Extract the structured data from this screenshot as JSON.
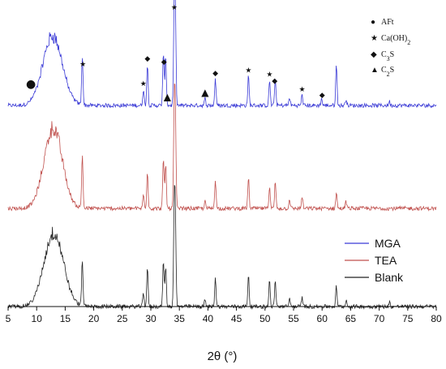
{
  "chart_data": {
    "type": "line",
    "xlabel": "2θ (°)",
    "xlim": [
      5,
      80
    ],
    "xticks": [
      5,
      10,
      15,
      20,
      25,
      30,
      35,
      40,
      45,
      50,
      55,
      60,
      65,
      70,
      75,
      80
    ],
    "series": [
      {
        "name": "MGA",
        "color": "#3b3bd6",
        "baseline": 0.0,
        "hump": {
          "center": 12.8,
          "width": 1.7,
          "height": 0.52
        },
        "peaks": [
          [
            18.0,
            0.37
          ],
          [
            28.7,
            0.12
          ],
          [
            29.4,
            0.31
          ],
          [
            32.2,
            0.38
          ],
          [
            32.6,
            0.37
          ],
          [
            34.1,
            0.72
          ],
          [
            34.3,
            0.62
          ],
          [
            39.5,
            0.05
          ],
          [
            41.3,
            0.2
          ],
          [
            47.1,
            0.22
          ],
          [
            50.8,
            0.19
          ],
          [
            51.8,
            0.2
          ],
          [
            54.3,
            0.06
          ],
          [
            56.5,
            0.08
          ],
          [
            59.9,
            0.05
          ],
          [
            62.5,
            0.3
          ],
          [
            64.2,
            0.05
          ],
          [
            71.8,
            0.03
          ]
        ]
      },
      {
        "name": "TEA",
        "color": "#c0504d",
        "baseline": 0.0,
        "hump": {
          "center": 12.9,
          "width": 1.6,
          "height": 0.6
        },
        "peaks": [
          [
            18.0,
            0.4
          ],
          [
            28.7,
            0.1
          ],
          [
            29.4,
            0.28
          ],
          [
            32.2,
            0.36
          ],
          [
            32.6,
            0.33
          ],
          [
            34.1,
            0.72
          ],
          [
            34.3,
            0.62
          ],
          [
            39.5,
            0.05
          ],
          [
            41.3,
            0.22
          ],
          [
            47.1,
            0.23
          ],
          [
            50.8,
            0.17
          ],
          [
            51.8,
            0.2
          ],
          [
            54.3,
            0.07
          ],
          [
            56.5,
            0.09
          ],
          [
            62.5,
            0.12
          ],
          [
            64.2,
            0.05
          ]
        ]
      },
      {
        "name": "Blank",
        "color": "#222222",
        "baseline": 0.0,
        "hump": {
          "center": 13.0,
          "width": 1.7,
          "height": 0.55
        },
        "peaks": [
          [
            18.0,
            0.34
          ],
          [
            28.7,
            0.1
          ],
          [
            29.4,
            0.29
          ],
          [
            32.2,
            0.33
          ],
          [
            32.6,
            0.3
          ],
          [
            34.1,
            0.72
          ],
          [
            34.3,
            0.6
          ],
          [
            39.5,
            0.05
          ],
          [
            41.3,
            0.22
          ],
          [
            47.1,
            0.24
          ],
          [
            50.8,
            0.2
          ],
          [
            51.8,
            0.19
          ],
          [
            54.3,
            0.06
          ],
          [
            56.5,
            0.07
          ],
          [
            62.5,
            0.15
          ],
          [
            64.2,
            0.05
          ],
          [
            71.8,
            0.03
          ]
        ]
      }
    ],
    "legend": {
      "placement": "right",
      "entries": [
        "MGA",
        "TEA",
        "Blank"
      ]
    },
    "phase_legend": [
      {
        "symbol": "circle",
        "glyph": "●",
        "label": "AFt"
      },
      {
        "symbol": "star",
        "glyph": "★",
        "label": "Ca(OH)2"
      },
      {
        "symbol": "diamond",
        "glyph": "◆",
        "label": "C3S"
      },
      {
        "symbol": "triangle",
        "glyph": "▲",
        "label": "C2S"
      }
    ],
    "annotations": [
      {
        "symbol": "circle",
        "x": 9.0
      },
      {
        "symbol": "star",
        "x": 18.1
      },
      {
        "symbol": "star",
        "x": 28.7
      },
      {
        "symbol": "diamond",
        "x": 29.4
      },
      {
        "symbol": "diamond",
        "x": 32.3
      },
      {
        "symbol": "triangle",
        "x": 32.9
      },
      {
        "symbol": "star",
        "x": 34.1
      },
      {
        "symbol": "triangle",
        "x": 39.5
      },
      {
        "symbol": "diamond",
        "x": 41.3
      },
      {
        "symbol": "star",
        "x": 47.1
      },
      {
        "symbol": "star",
        "x": 50.8
      },
      {
        "symbol": "diamond",
        "x": 51.7
      },
      {
        "symbol": "star",
        "x": 56.5
      },
      {
        "symbol": "diamond",
        "x": 60.0
      }
    ]
  }
}
